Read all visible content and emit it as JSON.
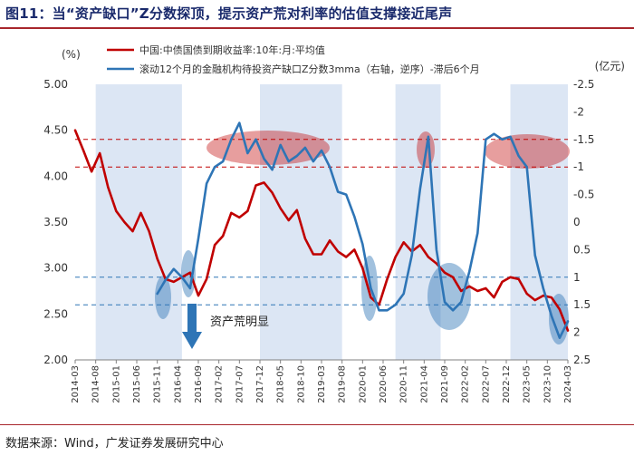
{
  "title": "图11：当“资产缺口”Z分数探顶，提示资产荒对利率的估值支撑接近尾声",
  "source": "数据来源：Wind，广发证券发展研究中心",
  "chart_data": {
    "type": "line",
    "left_unit": "(%)",
    "right_unit": "(亿元)",
    "left_axis": {
      "min": 2.0,
      "max": 5.0,
      "ticks": [
        "2.00",
        "2.50",
        "3.00",
        "3.50",
        "4.00",
        "4.50",
        "5.00"
      ]
    },
    "right_axis": {
      "inverted": true,
      "min": -2.5,
      "max": 2.5,
      "ticks": [
        "-2.5",
        "-2",
        "-1.5",
        "-1",
        "-0.5",
        "0",
        "0.5",
        "1",
        "1.5",
        "2",
        "2.5"
      ]
    },
    "x_tick_labels": [
      "2014-03",
      "2014-08",
      "2015-01",
      "2015-06",
      "2015-11",
      "2016-04",
      "2016-09",
      "2017-02",
      "2017-07",
      "2017-12",
      "2018-05",
      "2018-10",
      "2019-03",
      "2019-08",
      "2020-01",
      "2020-06",
      "2020-11",
      "2021-04",
      "2021-09",
      "2022-02",
      "2022-07",
      "2022-12",
      "2023-05",
      "2023-10",
      "2024-03"
    ],
    "series": [
      {
        "name": "中国:中债国债到期收益率:10年:月:平均值",
        "axis": "left",
        "color": "#c00000",
        "points": [
          [
            "2014-03",
            4.5
          ],
          [
            "2014-05",
            4.28
          ],
          [
            "2014-07",
            4.05
          ],
          [
            "2014-09",
            4.25
          ],
          [
            "2014-11",
            3.88
          ],
          [
            "2015-01",
            3.62
          ],
          [
            "2015-03",
            3.5
          ],
          [
            "2015-05",
            3.4
          ],
          [
            "2015-07",
            3.6
          ],
          [
            "2015-09",
            3.4
          ],
          [
            "2015-11",
            3.1
          ],
          [
            "2016-01",
            2.88
          ],
          [
            "2016-03",
            2.85
          ],
          [
            "2016-05",
            2.9
          ],
          [
            "2016-07",
            2.95
          ],
          [
            "2016-09",
            2.7
          ],
          [
            "2016-11",
            2.88
          ],
          [
            "2017-01",
            3.25
          ],
          [
            "2017-03",
            3.35
          ],
          [
            "2017-05",
            3.6
          ],
          [
            "2017-07",
            3.55
          ],
          [
            "2017-09",
            3.62
          ],
          [
            "2017-11",
            3.9
          ],
          [
            "2018-01",
            3.93
          ],
          [
            "2018-03",
            3.82
          ],
          [
            "2018-05",
            3.65
          ],
          [
            "2018-07",
            3.52
          ],
          [
            "2018-09",
            3.63
          ],
          [
            "2018-11",
            3.32
          ],
          [
            "2019-01",
            3.15
          ],
          [
            "2019-03",
            3.15
          ],
          [
            "2019-05",
            3.3
          ],
          [
            "2019-07",
            3.18
          ],
          [
            "2019-09",
            3.12
          ],
          [
            "2019-11",
            3.2
          ],
          [
            "2020-01",
            3.0
          ],
          [
            "2020-03",
            2.68
          ],
          [
            "2020-05",
            2.6
          ],
          [
            "2020-07",
            2.88
          ],
          [
            "2020-09",
            3.12
          ],
          [
            "2020-11",
            3.28
          ],
          [
            "2021-01",
            3.18
          ],
          [
            "2021-03",
            3.25
          ],
          [
            "2021-05",
            3.12
          ],
          [
            "2021-07",
            3.05
          ],
          [
            "2021-09",
            2.95
          ],
          [
            "2021-11",
            2.9
          ],
          [
            "2022-01",
            2.75
          ],
          [
            "2022-03",
            2.8
          ],
          [
            "2022-05",
            2.75
          ],
          [
            "2022-07",
            2.78
          ],
          [
            "2022-09",
            2.68
          ],
          [
            "2022-11",
            2.85
          ],
          [
            "2023-01",
            2.9
          ],
          [
            "2023-03",
            2.88
          ],
          [
            "2023-05",
            2.72
          ],
          [
            "2023-07",
            2.65
          ],
          [
            "2023-09",
            2.7
          ],
          [
            "2023-11",
            2.68
          ],
          [
            "2024-01",
            2.55
          ],
          [
            "2024-03",
            2.32
          ]
        ]
      },
      {
        "name": "滚动12个月的金融机构待投资产缺口Z分数3mma（右轴，逆序）-滞后6个月",
        "axis": "right",
        "color": "#2e75b6",
        "points": [
          [
            "2015-11",
            1.3
          ],
          [
            "2016-01",
            1.05
          ],
          [
            "2016-03",
            0.85
          ],
          [
            "2016-05",
            1.0
          ],
          [
            "2016-07",
            1.2
          ],
          [
            "2016-09",
            0.3
          ],
          [
            "2016-11",
            -0.7
          ],
          [
            "2017-01",
            -1.0
          ],
          [
            "2017-03",
            -1.1
          ],
          [
            "2017-05",
            -1.5
          ],
          [
            "2017-07",
            -1.8
          ],
          [
            "2017-09",
            -1.25
          ],
          [
            "2017-11",
            -1.5
          ],
          [
            "2018-01",
            -1.15
          ],
          [
            "2018-03",
            -0.95
          ],
          [
            "2018-05",
            -1.4
          ],
          [
            "2018-07",
            -1.1
          ],
          [
            "2018-09",
            -1.2
          ],
          [
            "2018-11",
            -1.35
          ],
          [
            "2019-01",
            -1.1
          ],
          [
            "2019-03",
            -1.3
          ],
          [
            "2019-05",
            -1.0
          ],
          [
            "2019-07",
            -0.55
          ],
          [
            "2019-09",
            -0.5
          ],
          [
            "2019-11",
            -0.1
          ],
          [
            "2020-01",
            0.4
          ],
          [
            "2020-03",
            1.2
          ],
          [
            "2020-05",
            1.6
          ],
          [
            "2020-07",
            1.6
          ],
          [
            "2020-09",
            1.5
          ],
          [
            "2020-11",
            1.3
          ],
          [
            "2021-01",
            0.6
          ],
          [
            "2021-03",
            -0.6
          ],
          [
            "2021-05",
            -1.55
          ],
          [
            "2021-07",
            0.5
          ],
          [
            "2021-09",
            1.45
          ],
          [
            "2021-11",
            1.6
          ],
          [
            "2022-01",
            1.45
          ],
          [
            "2022-03",
            0.9
          ],
          [
            "2022-05",
            0.2
          ],
          [
            "2022-07",
            -1.5
          ],
          [
            "2022-09",
            -1.6
          ],
          [
            "2022-11",
            -1.5
          ],
          [
            "2023-01",
            -1.55
          ],
          [
            "2023-03",
            -1.2
          ],
          [
            "2023-05",
            -1.0
          ],
          [
            "2023-07",
            0.6
          ],
          [
            "2023-09",
            1.2
          ],
          [
            "2023-11",
            1.7
          ],
          [
            "2024-01",
            2.1
          ],
          [
            "2024-03",
            1.8
          ]
        ]
      }
    ],
    "reference_lines": [
      {
        "axis": "right",
        "value": -1.5,
        "color": "#c00000",
        "style": "dashed"
      },
      {
        "axis": "right",
        "value": -1.0,
        "color": "#c00000",
        "style": "dashed"
      },
      {
        "axis": "right",
        "value": 1.0,
        "color": "#2e75b6",
        "style": "dashed"
      },
      {
        "axis": "right",
        "value": 1.5,
        "color": "#2e75b6",
        "style": "dashed"
      }
    ],
    "shaded_periods": [
      [
        "2014-08",
        "2016-05"
      ],
      [
        "2017-12",
        "2019-08"
      ],
      [
        "2020-09",
        "2021-08"
      ],
      [
        "2023-01",
        "2024-03"
      ]
    ],
    "highlights": [
      {
        "shape": "ellipse",
        "color": "#c00000",
        "near": "2018-04 ~ 2019-04"
      },
      {
        "shape": "ellipse",
        "color": "#c00000",
        "near": "2021-04"
      },
      {
        "shape": "ellipse",
        "color": "#c00000",
        "near": "2022-08 ~ 2023-08"
      },
      {
        "shape": "ellipse",
        "color": "#2e75b6",
        "near": "2015-12"
      },
      {
        "shape": "ellipse",
        "color": "#2e75b6",
        "near": "2016-06"
      },
      {
        "shape": "ellipse",
        "color": "#2e75b6",
        "near": "2020-04"
      },
      {
        "shape": "ellipse",
        "color": "#2e75b6",
        "near": "2021-11"
      },
      {
        "shape": "ellipse",
        "color": "#2e75b6",
        "near": "2024-01"
      }
    ],
    "annotation": {
      "text": "资产荒明显",
      "at": "2016-08"
    }
  }
}
